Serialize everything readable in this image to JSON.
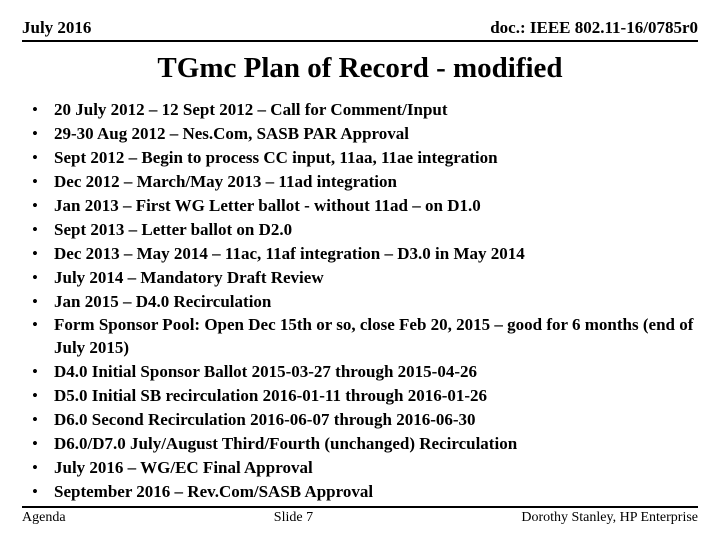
{
  "header": {
    "date": "July 2016",
    "doc": "doc.: IEEE 802.11-16/0785r0"
  },
  "title": "TGmc Plan of Record - modified",
  "bullets": [
    "20 July 2012 – 12 Sept 2012 – Call for Comment/Input",
    "29-30 Aug 2012 – Nes.Com, SASB PAR Approval",
    "Sept 2012 – Begin to process CC input, 11aa, 11ae integration",
    "Dec 2012 – March/May 2013 – 11ad integration",
    "Jan 2013 – First WG Letter ballot  - without 11ad – on D1.0",
    "Sept 2013 – Letter ballot on D2.0",
    "Dec 2013 – May 2014 – 11ac, 11af integration – D3.0 in May 2014",
    "July 2014 – Mandatory Draft Review",
    "Jan 2015 – D4.0 Recirculation",
    "Form Sponsor Pool:  Open Dec 15th or so, close Feb 20, 2015 – good for 6 months (end of July 2015)",
    "D4.0 Initial Sponsor Ballot 2015-03-27 through 2015-04-26",
    "D5.0 Initial SB recirculation 2016-01-11 through 2016-01-26",
    "D6.0 Second Recirculation 2016-06-07 through 2016-06-30",
    "D6.0/D7.0 July/August Third/Fourth (unchanged) Recirculation",
    "July 2016 – WG/EC Final Approval",
    "September 2016 – Rev.Com/SASB Approval"
  ],
  "footer": {
    "left": "Agenda",
    "center": "Slide 7",
    "right": "Dorothy Stanley, HP Enterprise"
  },
  "style": {
    "background": "#ffffff",
    "text_color": "#000000",
    "font_family": "Times New Roman",
    "title_fontsize": 29,
    "body_fontsize": 17,
    "header_fontsize": 17,
    "footer_fontsize": 14
  }
}
